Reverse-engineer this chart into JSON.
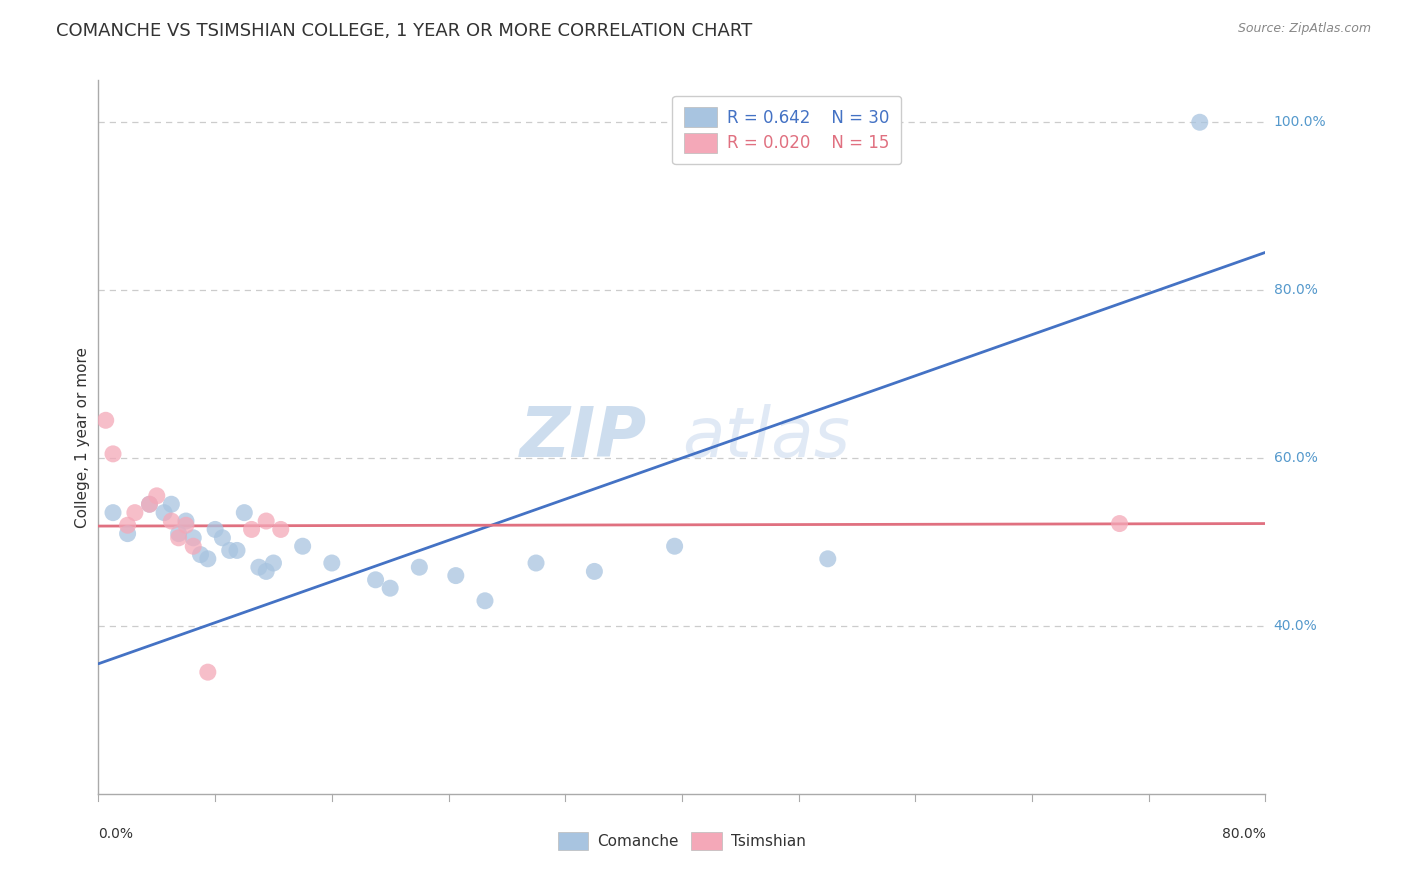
{
  "title": "COMANCHE VS TSIMSHIAN COLLEGE, 1 YEAR OR MORE CORRELATION CHART",
  "source": "Source: ZipAtlas.com",
  "ylabel": "College, 1 year or more",
  "xlim": [
    0.0,
    0.8
  ],
  "ylim": [
    0.2,
    1.05
  ],
  "ytick_labels": [
    "40.0%",
    "60.0%",
    "80.0%",
    "100.0%"
  ],
  "ytick_values": [
    0.4,
    0.6,
    0.8,
    1.0
  ],
  "grid_color": "#cccccc",
  "watermark_zip": "ZIP",
  "watermark_atlas": "atlas",
  "legend_r1": "R = 0.642",
  "legend_n1": "N = 30",
  "legend_r2": "R = 0.020",
  "legend_n2": "N = 15",
  "comanche_color": "#a8c4e0",
  "tsimshian_color": "#f4a8b8",
  "line_blue": "#4472c4",
  "line_pink": "#e07080",
  "comanche_x": [
    0.01,
    0.02,
    0.035,
    0.045,
    0.05,
    0.055,
    0.06,
    0.065,
    0.07,
    0.075,
    0.08,
    0.085,
    0.09,
    0.095,
    0.1,
    0.11,
    0.115,
    0.12,
    0.14,
    0.16,
    0.19,
    0.2,
    0.22,
    0.245,
    0.265,
    0.3,
    0.34,
    0.395,
    0.5,
    0.755
  ],
  "comanche_y": [
    0.535,
    0.51,
    0.545,
    0.535,
    0.545,
    0.51,
    0.525,
    0.505,
    0.485,
    0.48,
    0.515,
    0.505,
    0.49,
    0.49,
    0.535,
    0.47,
    0.465,
    0.475,
    0.495,
    0.475,
    0.455,
    0.445,
    0.47,
    0.46,
    0.43,
    0.475,
    0.465,
    0.495,
    0.48,
    1.0
  ],
  "tsimshian_x": [
    0.005,
    0.01,
    0.02,
    0.025,
    0.035,
    0.04,
    0.05,
    0.055,
    0.06,
    0.065,
    0.075,
    0.105,
    0.115,
    0.125,
    0.7
  ],
  "tsimshian_y": [
    0.645,
    0.605,
    0.52,
    0.535,
    0.545,
    0.555,
    0.525,
    0.505,
    0.52,
    0.495,
    0.345,
    0.515,
    0.525,
    0.515,
    0.522
  ],
  "blue_line_x": [
    0.0,
    0.8
  ],
  "blue_line_y": [
    0.355,
    0.845
  ],
  "pink_line_x": [
    0.0,
    0.8
  ],
  "pink_line_y": [
    0.519,
    0.522
  ],
  "background_color": "#ffffff",
  "spine_color": "#aaaaaa"
}
